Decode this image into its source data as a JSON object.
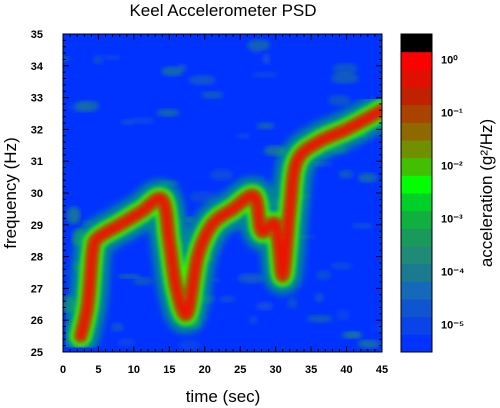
{
  "chart_data": {
    "type": "heatmap",
    "title": "Keel Accelerometer PSD",
    "xlabel": "time (sec)",
    "ylabel": "frequency (Hz)",
    "colorbar_label": "acceleration (g²/Hz)",
    "xlim": [
      0,
      45
    ],
    "ylim": [
      25,
      35
    ],
    "x_ticks": [
      "0",
      "5",
      "10",
      "15",
      "20",
      "25",
      "30",
      "35",
      "40",
      "45"
    ],
    "y_ticks": [
      "25",
      "26",
      "27",
      "28",
      "29",
      "30",
      "31",
      "32",
      "33",
      "34",
      "35"
    ],
    "colorbar": {
      "scale": "log",
      "range": [
        3e-06,
        3
      ],
      "ticks": [
        {
          "value": 1,
          "label": "10⁰"
        },
        {
          "value": 0.1,
          "label": "10⁻¹"
        },
        {
          "value": 0.01,
          "label": "10⁻²"
        },
        {
          "value": 0.001,
          "label": "10⁻³"
        },
        {
          "value": 0.0001,
          "label": "10⁻⁴"
        },
        {
          "value": 1e-05,
          "label": "10⁻⁵"
        }
      ],
      "colors": [
        "#0033ff",
        "#0a44e8",
        "#1055d0",
        "#146ab8",
        "#1a7a90",
        "#1f8a78",
        "#1a9a5a",
        "#10b040",
        "#00d028",
        "#00ff00",
        "#40c000",
        "#709000",
        "#906800",
        "#a84400",
        "#c02200",
        "#e01000",
        "#ff0000",
        "#000000"
      ]
    },
    "ridge": [
      {
        "t": 2.5,
        "f": 25.5
      },
      {
        "t": 3.5,
        "f": 26.5
      },
      {
        "t": 4.2,
        "f": 28.2
      },
      {
        "t": 5,
        "f": 28.6
      },
      {
        "t": 8,
        "f": 29.0
      },
      {
        "t": 11,
        "f": 29.4
      },
      {
        "t": 14,
        "f": 29.8
      },
      {
        "t": 15,
        "f": 28.5
      },
      {
        "t": 16,
        "f": 27.0
      },
      {
        "t": 17.5,
        "f": 26.2
      },
      {
        "t": 19,
        "f": 28.0
      },
      {
        "t": 21,
        "f": 29.0
      },
      {
        "t": 24,
        "f": 29.5
      },
      {
        "t": 27,
        "f": 29.9
      },
      {
        "t": 28,
        "f": 28.8
      },
      {
        "t": 30,
        "f": 29.0
      },
      {
        "t": 31,
        "f": 27.4
      },
      {
        "t": 32,
        "f": 29.5
      },
      {
        "t": 33,
        "f": 31.0
      },
      {
        "t": 36,
        "f": 31.6
      },
      {
        "t": 40,
        "f": 32.0
      },
      {
        "t": 45,
        "f": 32.6
      }
    ]
  }
}
